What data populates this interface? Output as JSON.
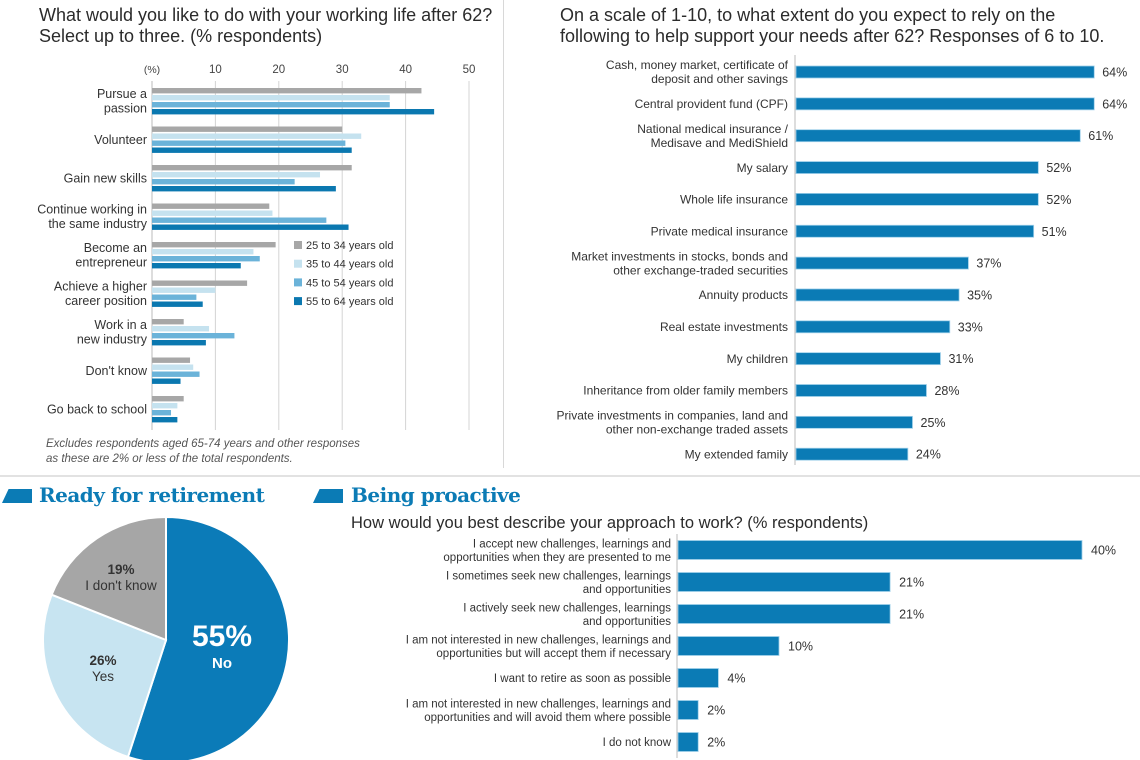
{
  "colors": {
    "accent": "#0b7bb5",
    "age_25_34": "#a7a7a7",
    "age_35_44": "#c5e2ef",
    "age_45_54": "#6bb3d9",
    "age_55_64": "#0b78b0",
    "bar": "#0b7bb5",
    "pie_no": "#0b7bb8",
    "pie_yes": "#c7e4f1",
    "pie_dont_know": "#a6a6a6"
  },
  "panel_top_left": {
    "title_line1": "What would you like to do with your working life after 62?",
    "title_line2": "Select up to three. (% respondents)",
    "note_line1": "Excludes respondents aged 65-74 years and other responses",
    "note_line2": "as these are 2% or less of the total respondents."
  },
  "panel_top_right": {
    "title_line1": "On a scale of 1-10, to what extent do you expect to rely on the",
    "title_line2": "following to help support your needs after 62? Responses of 6 to 10."
  },
  "panel_bottom_left": {
    "section_title": "Ready for retirement"
  },
  "panel_bottom_right": {
    "section_title": "Being proactive",
    "subtitle": "How would you best describe your approach to work? (% respondents)"
  },
  "chart_data": [
    {
      "type": "bar",
      "orientation": "horizontal",
      "title": "What would you like to do with your working life after 62? Select up to three. (% respondents)",
      "xlabel": "(%)",
      "xlim": [
        0,
        50
      ],
      "xticks": [
        10,
        20,
        30,
        40,
        50
      ],
      "grid": true,
      "legend": "center-right",
      "categories": [
        [
          "Pursue a",
          "passion"
        ],
        [
          "Volunteer"
        ],
        [
          "Gain new skills"
        ],
        [
          "Continue working in",
          "the same industry"
        ],
        [
          "Become an",
          "entrepreneur"
        ],
        [
          "Achieve a higher",
          "career position"
        ],
        [
          "Work in a",
          "new industry"
        ],
        [
          "Don't know"
        ],
        [
          "Go back to school"
        ]
      ],
      "series": [
        {
          "name": "25 to 34 years old",
          "values": [
            42.5,
            30,
            31.5,
            18.5,
            19.5,
            15,
            5,
            6,
            5
          ]
        },
        {
          "name": "35 to 44 years old",
          "values": [
            37.5,
            33,
            26.5,
            19,
            16,
            10,
            9,
            6.5,
            4
          ]
        },
        {
          "name": "45 to 54 years old",
          "values": [
            37.5,
            30.5,
            22.5,
            27.5,
            17,
            7,
            13,
            7.5,
            3
          ]
        },
        {
          "name": "55 to 64 years old",
          "values": [
            44.5,
            31.5,
            29,
            31,
            14,
            8,
            8.5,
            4.5,
            4
          ]
        }
      ]
    },
    {
      "type": "bar",
      "orientation": "horizontal",
      "title": "On a scale of 1-10, to what extent do you expect to rely on the following to help support your needs after 62? Responses of 6 to 10.",
      "categories": [
        [
          "Cash, money market, certificate of",
          "deposit and other savings"
        ],
        [
          "Central provident fund (CPF)"
        ],
        [
          "National medical insurance /",
          "Medisave and MediShield"
        ],
        [
          "My salary"
        ],
        [
          "Whole life insurance"
        ],
        [
          "Private medical insurance"
        ],
        [
          "Market investments in stocks, bonds and",
          "other exchange-traded securities"
        ],
        [
          "Annuity products"
        ],
        [
          "Real estate investments"
        ],
        [
          "My children"
        ],
        [
          "Inheritance from older family members"
        ],
        [
          "Private investments in companies, land and",
          "other non-exchange traded assets"
        ],
        [
          "My extended family"
        ]
      ],
      "values": [
        64,
        64,
        61,
        52,
        52,
        51,
        37,
        35,
        33,
        31,
        28,
        25,
        24
      ],
      "value_suffix": "%"
    },
    {
      "type": "pie",
      "title": "Ready for retirement",
      "slices": [
        {
          "label": "No",
          "value": 55
        },
        {
          "label": "Yes",
          "value": 26
        },
        {
          "label": "I don't know",
          "value": 19
        }
      ],
      "value_suffix": "%"
    },
    {
      "type": "bar",
      "orientation": "horizontal",
      "title": "How would you best describe your approach to work? (% respondents)",
      "categories": [
        [
          "I accept new challenges, learnings and",
          "opportunities when they are presented to me"
        ],
        [
          "I sometimes seek new challenges, learnings",
          "and opportunities"
        ],
        [
          "I actively seek new challenges, learnings",
          "and opportunities"
        ],
        [
          "I am not interested in new challenges, learnings and",
          "opportunities but will accept them if necessary"
        ],
        [
          "I want to retire as soon as possible"
        ],
        [
          "I am not interested in new challenges, learnings and",
          "opportunities and will avoid them where possible"
        ],
        [
          "I do not know"
        ]
      ],
      "values": [
        40,
        21,
        21,
        10,
        4,
        2,
        2
      ],
      "value_suffix": "%"
    }
  ]
}
